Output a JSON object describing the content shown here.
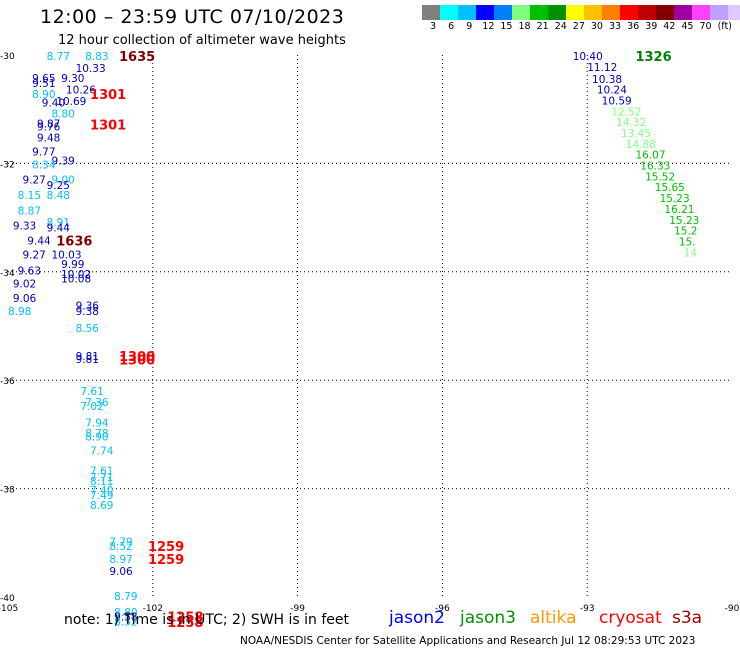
{
  "header": {
    "title": "12:00 – 23:59 UTC 07/10/2023",
    "subtitle": "12 hour collection of altimeter wave heights"
  },
  "legend": {
    "colors": [
      "#808080",
      "#00ffff",
      "#00bfff",
      "#0000ff",
      "#0080ff",
      "#80ff80",
      "#00c000",
      "#009000",
      "#ffff00",
      "#ffc000",
      "#ff8000",
      "#ff0000",
      "#c00000",
      "#800000",
      "#a000a0",
      "#ff40ff",
      "#c0a0ff",
      "#e0c8ff",
      "#000000"
    ],
    "labels": [
      "3",
      "6",
      "9",
      "12",
      "15",
      "18",
      "21",
      "24",
      "27",
      "30",
      "33",
      "36",
      "39",
      "42",
      "45",
      "70",
      "(ft)"
    ]
  },
  "map": {
    "lon_min": -105,
    "lon_max": -90,
    "lat_min": -40,
    "lat_max": -30,
    "x_ticks": [
      -105,
      -102,
      -99,
      -96,
      -93,
      -90
    ],
    "y_ticks": [
      -30,
      -32,
      -34,
      -36,
      -38,
      -40
    ],
    "x_tick_labels": [
      "-105",
      "-102",
      "-99",
      "-96",
      "-93",
      "-90"
    ],
    "y_tick_labels": [
      "-30",
      "-32",
      "-34",
      "-36",
      "-38",
      "-40"
    ]
  },
  "chart_data": {
    "type": "scatter",
    "x_axis": "longitude",
    "y_axis": "latitude",
    "points": [
      {
        "lon": -104.2,
        "lat": -30.02,
        "v": "8.77",
        "c": "#00bfff"
      },
      {
        "lon": -103.4,
        "lat": -30.02,
        "v": "8.83",
        "c": "#00bfff"
      },
      {
        "lon": -103.6,
        "lat": -30.24,
        "v": "10.33",
        "c": "#0000c0"
      },
      {
        "lon": -104.5,
        "lat": -30.42,
        "v": "9.65",
        "c": "#0000c0"
      },
      {
        "lon": -103.9,
        "lat": -30.42,
        "v": "9.30",
        "c": "#0000c0"
      },
      {
        "lon": -104.5,
        "lat": -30.52,
        "v": "9.51",
        "c": "#0000c0"
      },
      {
        "lon": -103.8,
        "lat": -30.64,
        "v": "10.26",
        "c": "#0000c0"
      },
      {
        "lon": -104.5,
        "lat": -30.72,
        "v": "8.90",
        "c": "#00bfff"
      },
      {
        "lon": -104.3,
        "lat": -30.88,
        "v": "9.40",
        "c": "#0000c0"
      },
      {
        "lon": -104.0,
        "lat": -30.85,
        "v": "10.69",
        "c": "#0000c0"
      },
      {
        "lon": -104.1,
        "lat": -31.08,
        "v": "8.80",
        "c": "#00bfff"
      },
      {
        "lon": -104.4,
        "lat": -31.26,
        "v": "9.87",
        "c": "#0000c0"
      },
      {
        "lon": -104.4,
        "lat": -31.32,
        "v": "9.76",
        "c": "#0000c0"
      },
      {
        "lon": -104.4,
        "lat": -31.52,
        "v": "9.48",
        "c": "#0000c0"
      },
      {
        "lon": -104.5,
        "lat": -31.78,
        "v": "9.77",
        "c": "#0000c0"
      },
      {
        "lon": -104.1,
        "lat": -31.95,
        "v": "9.39",
        "c": "#0000c0"
      },
      {
        "lon": -104.5,
        "lat": -32.02,
        "v": "8.34",
        "c": "#00bfff"
      },
      {
        "lon": -104.7,
        "lat": -32.3,
        "v": "9.27",
        "c": "#0000c0"
      },
      {
        "lon": -104.1,
        "lat": -32.3,
        "v": "9.00",
        "c": "#00bfff"
      },
      {
        "lon": -104.2,
        "lat": -32.4,
        "v": "9.25",
        "c": "#0000c0"
      },
      {
        "lon": -104.8,
        "lat": -32.58,
        "v": "8.15",
        "c": "#00bfff"
      },
      {
        "lon": -104.2,
        "lat": -32.58,
        "v": "8.48",
        "c": "#00bfff"
      },
      {
        "lon": -104.8,
        "lat": -32.87,
        "v": "8.87",
        "c": "#00bfff"
      },
      {
        "lon": -104.2,
        "lat": -33.08,
        "v": "8.91",
        "c": "#00bfff"
      },
      {
        "lon": -104.9,
        "lat": -33.15,
        "v": "9.33",
        "c": "#0000c0"
      },
      {
        "lon": -104.2,
        "lat": -33.18,
        "v": "9.44",
        "c": "#0000c0"
      },
      {
        "lon": -104.6,
        "lat": -33.42,
        "v": "9.44",
        "c": "#0000c0"
      },
      {
        "lon": -104.7,
        "lat": -33.68,
        "v": "9.27",
        "c": "#0000c0"
      },
      {
        "lon": -104.1,
        "lat": -33.68,
        "v": "10.03",
        "c": "#0000c0"
      },
      {
        "lon": -103.9,
        "lat": -33.86,
        "v": "9.99",
        "c": "#0000c0"
      },
      {
        "lon": -104.8,
        "lat": -33.98,
        "v": "9.63",
        "c": "#0000c0"
      },
      {
        "lon": -103.9,
        "lat": -34.04,
        "v": "10.02",
        "c": "#0000c0"
      },
      {
        "lon": -103.9,
        "lat": -34.12,
        "v": "10.08",
        "c": "#0000c0"
      },
      {
        "lon": -104.9,
        "lat": -34.22,
        "v": "9.02",
        "c": "#0000c0"
      },
      {
        "lon": -104.9,
        "lat": -34.48,
        "v": "9.06",
        "c": "#0000c0"
      },
      {
        "lon": -105.0,
        "lat": -34.72,
        "v": "8.98",
        "c": "#00bfff"
      },
      {
        "lon": -103.6,
        "lat": -34.62,
        "v": "9.36",
        "c": "#0000c0"
      },
      {
        "lon": -103.6,
        "lat": -34.72,
        "v": "9.38",
        "c": "#0000c0"
      },
      {
        "lon": -103.6,
        "lat": -35.04,
        "v": "8.56",
        "c": "#00bfff"
      },
      {
        "lon": -103.6,
        "lat": -35.55,
        "v": "9.81",
        "c": "#0000c0"
      },
      {
        "lon": -103.6,
        "lat": -35.61,
        "v": "9.81",
        "c": "#0000c0"
      },
      {
        "lon": -103.5,
        "lat": -36.2,
        "v": "7.61",
        "c": "#00bfff"
      },
      {
        "lon": -103.4,
        "lat": -36.4,
        "v": "7.36",
        "c": "#00bfff"
      },
      {
        "lon": -103.5,
        "lat": -36.48,
        "v": "7.02",
        "c": "#00bfff"
      },
      {
        "lon": -103.4,
        "lat": -36.78,
        "v": "7.94",
        "c": "#00bfff"
      },
      {
        "lon": -103.4,
        "lat": -36.97,
        "v": "8.78",
        "c": "#00bfff"
      },
      {
        "lon": -103.4,
        "lat": -37.04,
        "v": "8.90",
        "c": "#00bfff"
      },
      {
        "lon": -103.3,
        "lat": -37.3,
        "v": "7.74",
        "c": "#00bfff"
      },
      {
        "lon": -103.3,
        "lat": -37.67,
        "v": "7.61",
        "c": "#00bfff"
      },
      {
        "lon": -103.3,
        "lat": -37.79,
        "v": "7.71",
        "c": "#00bfff"
      },
      {
        "lon": -103.3,
        "lat": -37.86,
        "v": "8.11",
        "c": "#00bfff"
      },
      {
        "lon": -103.3,
        "lat": -38.03,
        "v": "7.40",
        "c": "#00bfff"
      },
      {
        "lon": -103.3,
        "lat": -38.12,
        "v": "7.49",
        "c": "#00bfff"
      },
      {
        "lon": -103.3,
        "lat": -38.3,
        "v": "8.69",
        "c": "#00bfff"
      },
      {
        "lon": -102.9,
        "lat": -38.98,
        "v": "7.79",
        "c": "#00bfff"
      },
      {
        "lon": -102.9,
        "lat": -39.06,
        "v": "8.52",
        "c": "#00bfff"
      },
      {
        "lon": -102.9,
        "lat": -39.3,
        "v": "8.97",
        "c": "#00bfff"
      },
      {
        "lon": -102.9,
        "lat": -39.52,
        "v": "9.06",
        "c": "#0000c0"
      },
      {
        "lon": -102.8,
        "lat": -39.98,
        "v": "8.79",
        "c": "#00bfff"
      },
      {
        "lon": -102.8,
        "lat": -40.28,
        "v": "8.80",
        "c": "#00bfff"
      },
      {
        "lon": -102.8,
        "lat": -40.36,
        "v": "9.58",
        "c": "#0000c0"
      },
      {
        "lon": -102.8,
        "lat": -40.45,
        "v": "8.52",
        "c": "#00bfff"
      },
      {
        "lon": -93.3,
        "lat": -30.02,
        "v": "10.40",
        "c": "#0000c0"
      },
      {
        "lon": -93.0,
        "lat": -30.22,
        "v": "11.12",
        "c": "#0000c0"
      },
      {
        "lon": -92.9,
        "lat": -30.44,
        "v": "10.38",
        "c": "#0000c0"
      },
      {
        "lon": -92.8,
        "lat": -30.64,
        "v": "10.24",
        "c": "#0000c0"
      },
      {
        "lon": -92.7,
        "lat": -30.84,
        "v": "10.59",
        "c": "#0000c0"
      },
      {
        "lon": -92.5,
        "lat": -31.04,
        "v": "12.52",
        "c": "#80ff80"
      },
      {
        "lon": -92.4,
        "lat": -31.24,
        "v": "14.32",
        "c": "#80ff80"
      },
      {
        "lon": -92.3,
        "lat": -31.44,
        "v": "13.45",
        "c": "#80ff80"
      },
      {
        "lon": -92.2,
        "lat": -31.64,
        "v": "14.88",
        "c": "#80ff80"
      },
      {
        "lon": -92.0,
        "lat": -31.84,
        "v": "16.07",
        "c": "#00c000"
      },
      {
        "lon": -91.9,
        "lat": -32.04,
        "v": "16.33",
        "c": "#00c000"
      },
      {
        "lon": -91.8,
        "lat": -32.24,
        "v": "15.52",
        "c": "#00c000"
      },
      {
        "lon": -91.6,
        "lat": -32.44,
        "v": "15.65",
        "c": "#00c000"
      },
      {
        "lon": -91.5,
        "lat": -32.64,
        "v": "15.23",
        "c": "#00c000"
      },
      {
        "lon": -91.4,
        "lat": -32.84,
        "v": "16.21",
        "c": "#00c000"
      },
      {
        "lon": -91.3,
        "lat": -33.04,
        "v": "15.23",
        "c": "#00c000"
      },
      {
        "lon": -91.2,
        "lat": -33.24,
        "v": "15.2",
        "c": "#00c000"
      },
      {
        "lon": -91.1,
        "lat": -33.44,
        "v": "15.",
        "c": "#00c000"
      },
      {
        "lon": -91.0,
        "lat": -33.64,
        "v": "14",
        "c": "#80ff80"
      }
    ],
    "time_labels": [
      {
        "lon": -102.7,
        "lat": -30.02,
        "t": "1635",
        "c": "#800000"
      },
      {
        "lon": -103.3,
        "lat": -30.72,
        "t": "1301",
        "c": "#ff0000"
      },
      {
        "lon": -103.3,
        "lat": -31.28,
        "t": "1301",
        "c": "#ff0000"
      },
      {
        "lon": -104.0,
        "lat": -33.42,
        "t": "1636",
        "c": "#800000"
      },
      {
        "lon": -102.7,
        "lat": -35.55,
        "t": "1300",
        "c": "#ff0000"
      },
      {
        "lon": -102.7,
        "lat": -35.62,
        "t": "1300",
        "c": "#ff0000"
      },
      {
        "lon": -102.1,
        "lat": -39.06,
        "t": "1259",
        "c": "#ff0000"
      },
      {
        "lon": -102.1,
        "lat": -39.3,
        "t": "1259",
        "c": "#ff0000"
      },
      {
        "lon": -101.7,
        "lat": -40.36,
        "t": "1258",
        "c": "#ff0000"
      },
      {
        "lon": -101.7,
        "lat": -40.46,
        "t": "1258",
        "c": "#ff0000"
      },
      {
        "lon": -92.0,
        "lat": -30.02,
        "t": "1326",
        "c": "#008000"
      }
    ]
  },
  "note": "note:  1) Time is in UTC;  2) SWH is in feet",
  "satellites": [
    {
      "name": "jason2",
      "color": "#0000ff"
    },
    {
      "name": "jason3",
      "color": "#009000"
    },
    {
      "name": "altika",
      "color": "#ff9900"
    },
    {
      "name": "cryosat",
      "color": "#ff0000"
    },
    {
      "name": "s3a",
      "color": "#990000"
    }
  ],
  "footer": "NOAA/NESDIS Center for Satellite Applications and Research    Jul 12 08:29:53 UTC 2023"
}
